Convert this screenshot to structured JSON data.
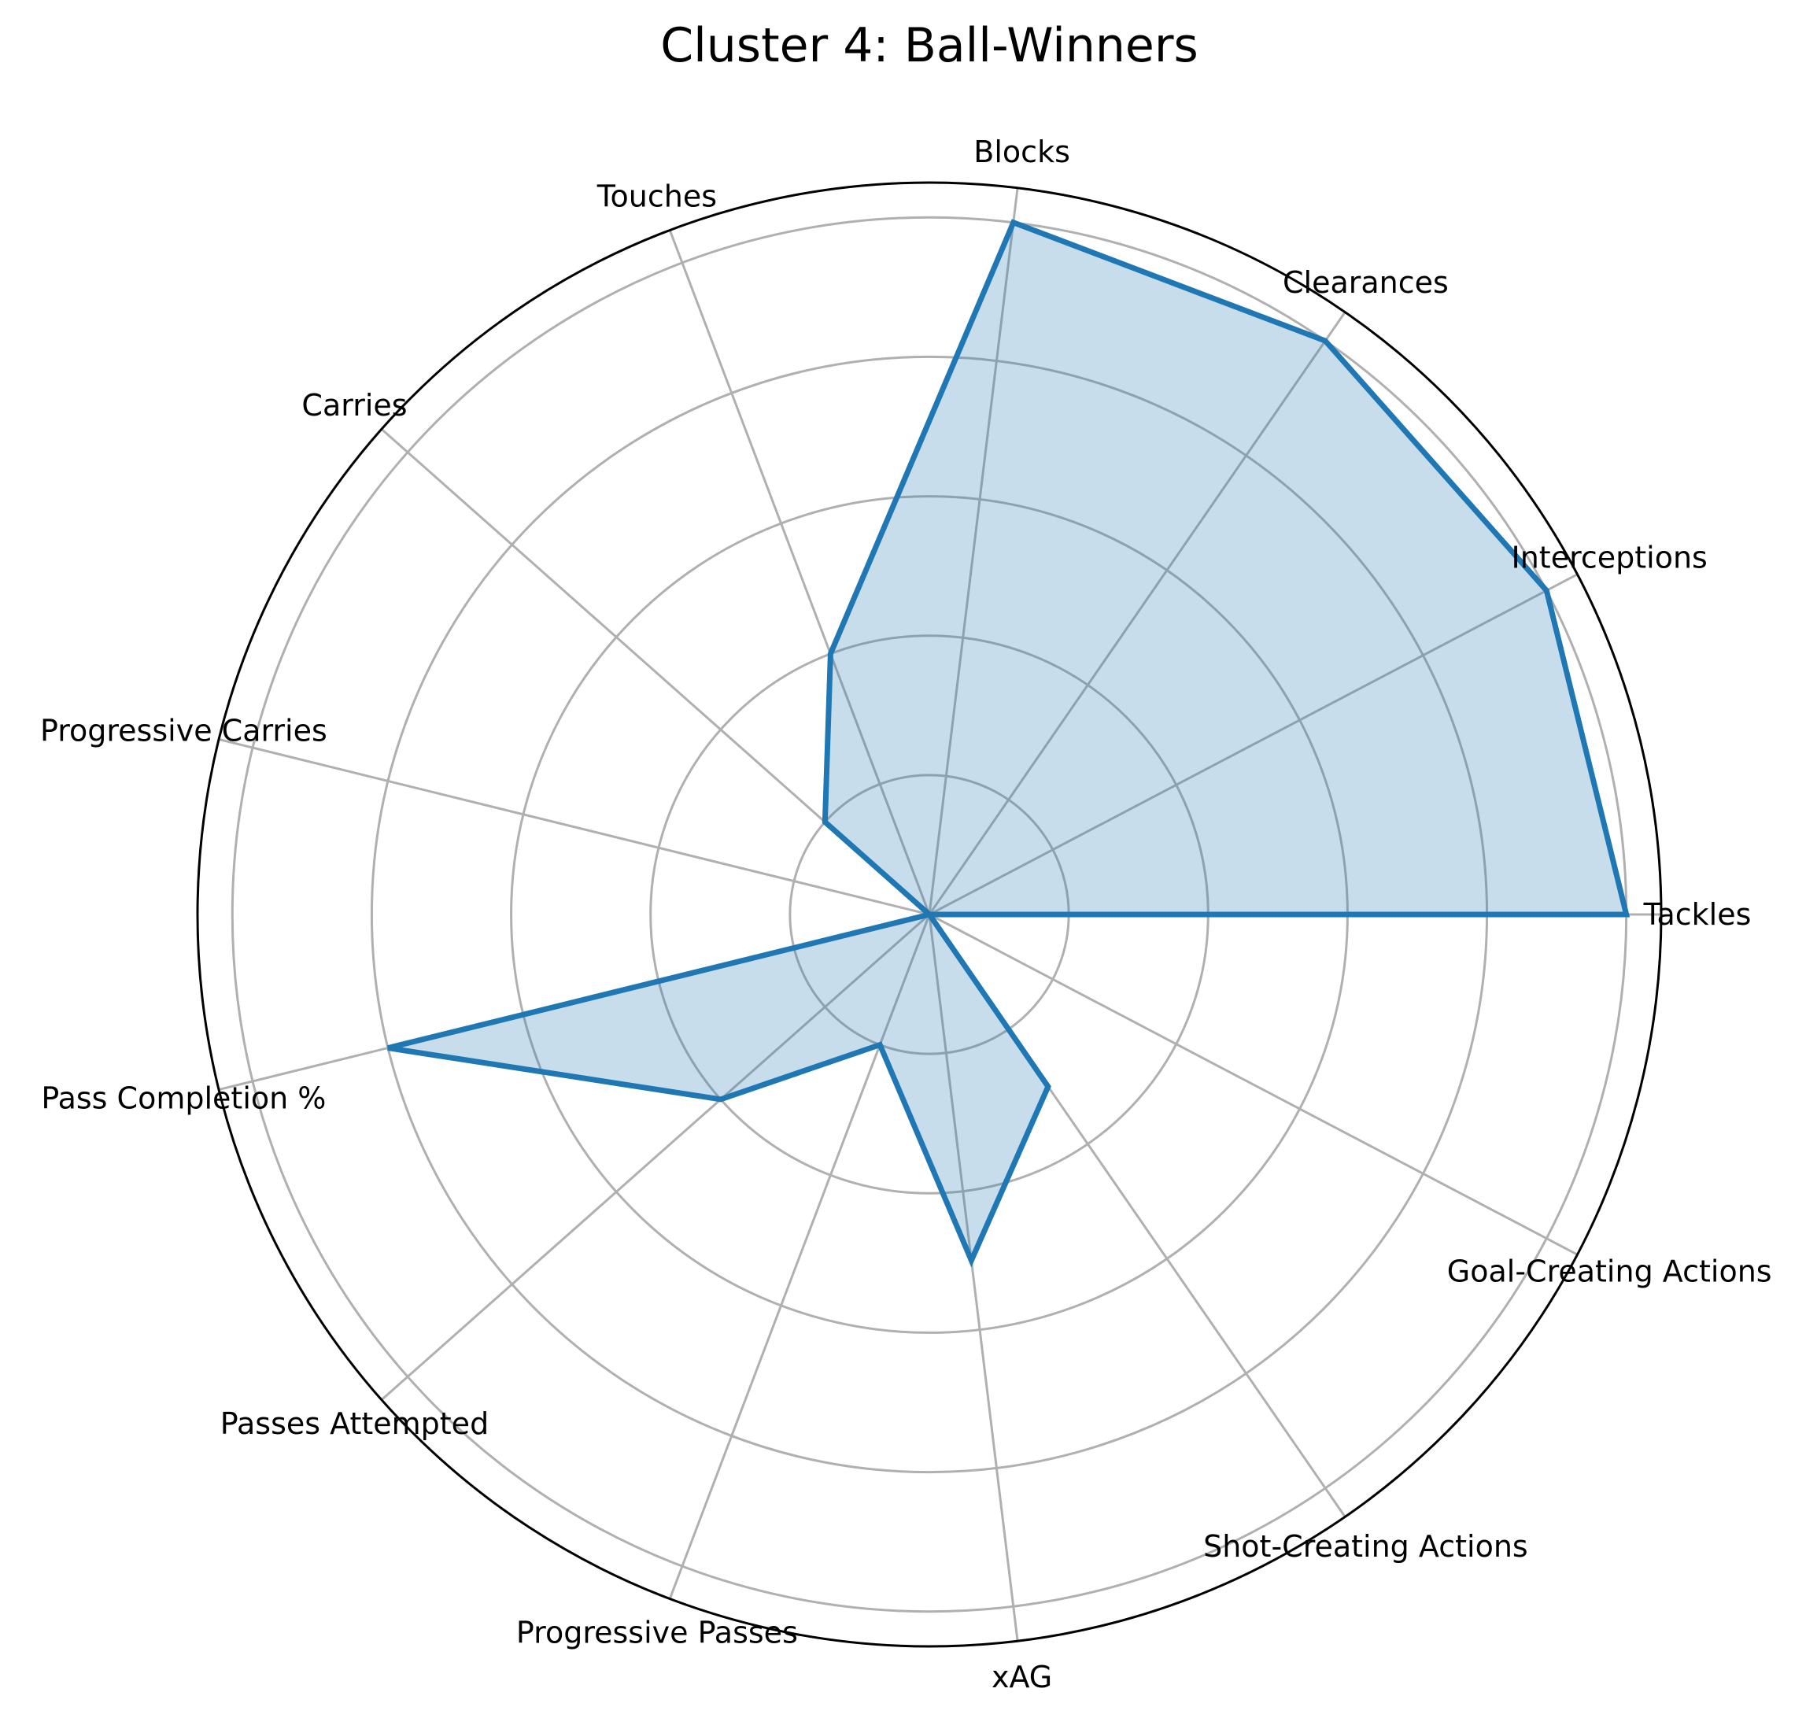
{
  "chart_data": {
    "type": "radar",
    "title": "Cluster 4: Ball-Winners",
    "categories": [
      "Tackles",
      "Interceptions",
      "Clearances",
      "Blocks",
      "Touches",
      "Carries",
      "Progressive Carries",
      "Pass Completion %",
      "Passes Attempted",
      "Progressive Passes",
      "xAG",
      "Shot-Creating Actions",
      "Goal-Creating Actions"
    ],
    "series": [
      {
        "values": [
          1.0,
          1.0,
          1.0,
          1.0,
          0.4,
          0.2,
          0.0,
          0.8,
          0.4,
          0.2,
          0.5,
          0.3,
          0.0
        ]
      }
    ],
    "rlim": [
      0,
      1.05
    ],
    "rgrid": [
      0.2,
      0.4,
      0.6,
      0.8,
      1.0
    ],
    "grid": true,
    "colors": {
      "line": "#1f77b4",
      "fill": "#1f77b4",
      "grid": "#b0b0b0",
      "frame": "#000000"
    }
  }
}
